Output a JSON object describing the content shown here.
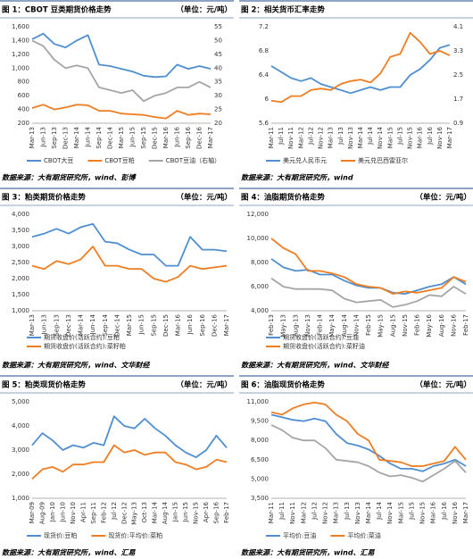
{
  "chart_data": [
    {
      "type": "line",
      "title": "图 1：CBOT 豆类期货价格走势",
      "unit": "（单位：元/吨）",
      "source": "数据来源：大有期货研究所，wind、彭博",
      "categories": [
        "Mar-13",
        "Jun-13",
        "Sep-13",
        "Dec-13",
        "Mar-14",
        "Jun-14",
        "Sep-14",
        "Dec-14",
        "Mar-15",
        "Jun-15",
        "Sep-15",
        "Dec-15",
        "Mar-16",
        "Jun-16",
        "Sep-16",
        "Dec-16",
        "Mar-17"
      ],
      "ylim": [
        200,
        1600
      ],
      "yticks": [
        200,
        400,
        600,
        800,
        {
          "value": 1000,
          "label": "1,000"
        },
        {
          "value": 1200,
          "label": "1,200"
        },
        {
          "value": 1400,
          "label": "1,400"
        },
        {
          "value": 1600,
          "label": "1,600"
        }
      ],
      "y2lim": [
        20,
        55
      ],
      "y2ticks": [
        20,
        25,
        30,
        35,
        40,
        45,
        50,
        55
      ],
      "series": [
        {
          "name": "CBOT大豆",
          "color": "#4f8fd0",
          "values": [
            1420,
            1500,
            1350,
            1300,
            1400,
            1480,
            1050,
            1030,
            990,
            950,
            890,
            870,
            880,
            1050,
            990,
            1030,
            990
          ]
        },
        {
          "name": "CBOT豆粕",
          "color": "#ef7d22",
          "values": [
            420,
            470,
            400,
            430,
            470,
            460,
            380,
            380,
            340,
            330,
            320,
            290,
            270,
            380,
            320,
            340,
            330
          ]
        },
        {
          "name": "CBOT豆油（右轴）",
          "color": "#a5a5a5",
          "axis": "y2",
          "values": [
            50,
            48,
            43,
            40,
            41,
            40,
            33,
            32,
            31,
            32,
            28,
            30,
            31,
            33,
            33,
            35,
            33
          ]
        }
      ]
    },
    {
      "type": "line",
      "title": "图 2：相关货币汇率走势",
      "source": "数据来源：大有期货研究所，wind",
      "categories": [
        "Mar-11",
        "Jul-11",
        "Nov-11",
        "Mar-12",
        "Jul-12",
        "Nov-12",
        "Mar-13",
        "Jul-13",
        "Nov-13",
        "Mar-14",
        "Jul-14",
        "Nov-14",
        "Mar-15",
        "Jul-15",
        "Nov-15",
        "Mar-16",
        "Jul-16",
        "Nov-16",
        "Mar-17"
      ],
      "ylim": [
        5.6,
        7.2
      ],
      "yticks": [
        5.6,
        6,
        6.4,
        6.8,
        7.2
      ],
      "y2lim": [
        0.9,
        4.1
      ],
      "y2ticks": [
        0.9,
        1.7,
        2.5,
        3.3,
        4.1
      ],
      "series": [
        {
          "name": "美元兑人民币元",
          "color": "#4f8fd0",
          "values": [
            6.55,
            6.45,
            6.35,
            6.3,
            6.35,
            6.25,
            6.2,
            6.15,
            6.1,
            6.15,
            6.2,
            6.15,
            6.2,
            6.2,
            6.4,
            6.5,
            6.65,
            6.85,
            6.9
          ]
        },
        {
          "name": "美元兑巴西雷亚尔",
          "color": "#ef7d22",
          "axis": "y2",
          "values": [
            1.65,
            1.6,
            1.8,
            1.8,
            2.0,
            2.05,
            2.0,
            2.2,
            2.3,
            2.35,
            2.25,
            2.55,
            3.1,
            3.2,
            3.9,
            3.6,
            3.2,
            3.3,
            3.15
          ]
        }
      ]
    },
    {
      "type": "line",
      "title": "图 3：粕类期货价格走势",
      "unit": "（单位：元/吨）",
      "source": "数据来源：大有期货研究所，wind、文华财经",
      "categories": [
        "Mar-13",
        "Jun-13",
        "Sep-13",
        "Dec-13",
        "Mar-14",
        "Jun-14",
        "Sep-14",
        "Dec-14",
        "Mar-15",
        "Jun-15",
        "Sep-15",
        "Dec-15",
        "Mar-16",
        "Jun-16",
        "Sep-16",
        "Dec-16",
        "Mar-17"
      ],
      "ylim": [
        1000,
        4000
      ],
      "yticks": [
        {
          "value": 1000,
          "label": "1,000"
        },
        {
          "value": 1500,
          "label": "1,500"
        },
        {
          "value": 2000,
          "label": "2,000"
        },
        {
          "value": 2500,
          "label": "2,500"
        },
        {
          "value": 3000,
          "label": "3,000"
        },
        {
          "value": 3500,
          "label": "3,500"
        },
        {
          "value": 4000,
          "label": "4,000"
        }
      ],
      "series": [
        {
          "name": "期货收盘价(活跃合约):豆粕",
          "color": "#4f8fd0",
          "values": [
            3300,
            3400,
            3550,
            3400,
            3600,
            3700,
            3150,
            3100,
            2900,
            2750,
            2750,
            2400,
            2400,
            3300,
            2900,
            2900,
            2850
          ]
        },
        {
          "name": "期货收盘价(活跃合约):菜籽粕",
          "color": "#ef7d22",
          "values": [
            2400,
            2300,
            2550,
            2450,
            2600,
            3000,
            2400,
            2400,
            2300,
            2300,
            2000,
            1900,
            2050,
            2400,
            2300,
            2350,
            2400
          ]
        }
      ]
    },
    {
      "type": "line",
      "title": "图 4：油脂期货价格走势",
      "unit": "（单位：元/吨）",
      "source": "数据来源：大有期货研究所，wind、文华财经",
      "categories": [
        "Feb-13",
        "May-13",
        "Aug-13",
        "Nov-13",
        "Feb-14",
        "May-14",
        "Aug-14",
        "Nov-14",
        "Feb-15",
        "May-15",
        "Aug-15",
        "Nov-15",
        "Feb-16",
        "May-16",
        "Aug-16",
        "Nov-16",
        "Feb-17"
      ],
      "ylim": [
        4000,
        12000
      ],
      "yticks": [
        {
          "value": 4000,
          "label": "4,000"
        },
        {
          "value": 6000,
          "label": "6,000"
        },
        {
          "value": 8000,
          "label": "8,000"
        },
        {
          "value": 10000,
          "label": "10,000"
        },
        {
          "value": 12000,
          "label": "12,000"
        }
      ],
      "series": [
        {
          "name": "期货收盘价(活跃合约):豆油",
          "color": "#4f8fd0",
          "values": [
            8300,
            7600,
            7300,
            7400,
            7000,
            7000,
            6500,
            6100,
            5900,
            5900,
            5500,
            5400,
            5700,
            6000,
            6200,
            6800,
            6200
          ]
        },
        {
          "name": "期货收盘价(活跃合约):菜籽油",
          "color": "#ef7d22",
          "values": [
            10000,
            9200,
            8700,
            7300,
            7300,
            7100,
            6800,
            6200,
            6000,
            5900,
            5400,
            5600,
            5500,
            5700,
            5900,
            6800,
            6400
          ]
        },
        {
          "color": "#a5a5a5",
          "values": [
            6700,
            6000,
            5800,
            5800,
            5800,
            5700,
            5000,
            4700,
            4800,
            4900,
            4300,
            4500,
            4800,
            5300,
            5200,
            6000,
            5400
          ]
        }
      ]
    },
    {
      "type": "line",
      "title": "图 5：粕类现货价格走势",
      "unit": "（单位：元/吨）",
      "source": "数据来源：大有期货研究所，wind、汇易",
      "categories": [
        "Mar-09",
        "Aug-09",
        "Jan-10",
        "Jun-10",
        "Nov-10",
        "Apr-11",
        "Sep-11",
        "Feb-12",
        "Jul-12",
        "Dec-12",
        "May-13",
        "Oct-13",
        "Mar-14",
        "Aug-14",
        "Jan-15",
        "Jun-15",
        "Nov-15",
        "Apr-16",
        "Sep-16",
        "Feb-17"
      ],
      "ylim": [
        1000,
        5000
      ],
      "yticks": [
        {
          "value": 1000,
          "label": "1,000"
        },
        {
          "value": 2000,
          "label": "2,000"
        },
        {
          "value": 3000,
          "label": "3,000"
        },
        {
          "value": 4000,
          "label": "4,000"
        },
        {
          "value": 5000,
          "label": "5,000"
        }
      ],
      "series": [
        {
          "name": "现货价:豆粕",
          "color": "#4f8fd0",
          "values": [
            3200,
            3700,
            3400,
            3000,
            3200,
            3100,
            3300,
            3200,
            4400,
            4000,
            3900,
            4300,
            3900,
            3600,
            3200,
            2900,
            2700,
            3000,
            3600,
            3100
          ]
        },
        {
          "name": "现货价:平均价:菜粕",
          "color": "#ef7d22",
          "values": [
            1800,
            2200,
            2300,
            2100,
            2400,
            2400,
            2500,
            2500,
            3200,
            2900,
            3000,
            2800,
            2900,
            2900,
            2500,
            2400,
            2200,
            2300,
            2600,
            2500
          ]
        }
      ]
    },
    {
      "type": "line",
      "title": "图 6：油脂现货价格走势",
      "unit": "（单位：元/吨）",
      "source": "数据来源：大有期货研究所，wind、汇易",
      "categories": [
        "Mar-11",
        "Jul-11",
        "Nov-11",
        "Mar-12",
        "Jul-12",
        "Nov-12",
        "Mar-13",
        "Jul-13",
        "Nov-13",
        "Mar-14",
        "Jul-14",
        "Nov-14",
        "Mar-15",
        "Jul-15",
        "Nov-15",
        "Mar-16",
        "Jul-16",
        "Nov-16",
        "Mar-17"
      ],
      "ylim": [
        3500,
        11000
      ],
      "yticks": [
        {
          "value": 3500,
          "label": "3,500"
        },
        {
          "value": 5000,
          "label": "5,000"
        },
        {
          "value": 6500,
          "label": "6,500"
        },
        {
          "value": 8000,
          "label": "8,000"
        },
        {
          "value": 9500,
          "label": "9,500"
        },
        {
          "value": 11000,
          "label": "11,000"
        }
      ],
      "series": [
        {
          "name": "平均价:豆油",
          "color": "#4f8fd0",
          "values": [
            10000,
            9800,
            9600,
            9500,
            9700,
            9500,
            8500,
            7800,
            7600,
            7300,
            6800,
            6200,
            5800,
            5800,
            5600,
            6000,
            6200,
            6500,
            6000
          ]
        },
        {
          "name": "平均价:菜油",
          "color": "#ef7d22",
          "values": [
            10200,
            10000,
            10500,
            10800,
            10950,
            10800,
            10000,
            9500,
            8500,
            8000,
            6500,
            6400,
            6300,
            6000,
            6000,
            6200,
            6400,
            7500,
            6500
          ]
        },
        {
          "color": "#a5a5a5",
          "values": [
            9200,
            8800,
            8200,
            8000,
            8000,
            7400,
            6500,
            6400,
            6300,
            6000,
            5500,
            5200,
            5300,
            5100,
            4800,
            5300,
            5800,
            6400,
            5500
          ]
        }
      ]
    }
  ]
}
